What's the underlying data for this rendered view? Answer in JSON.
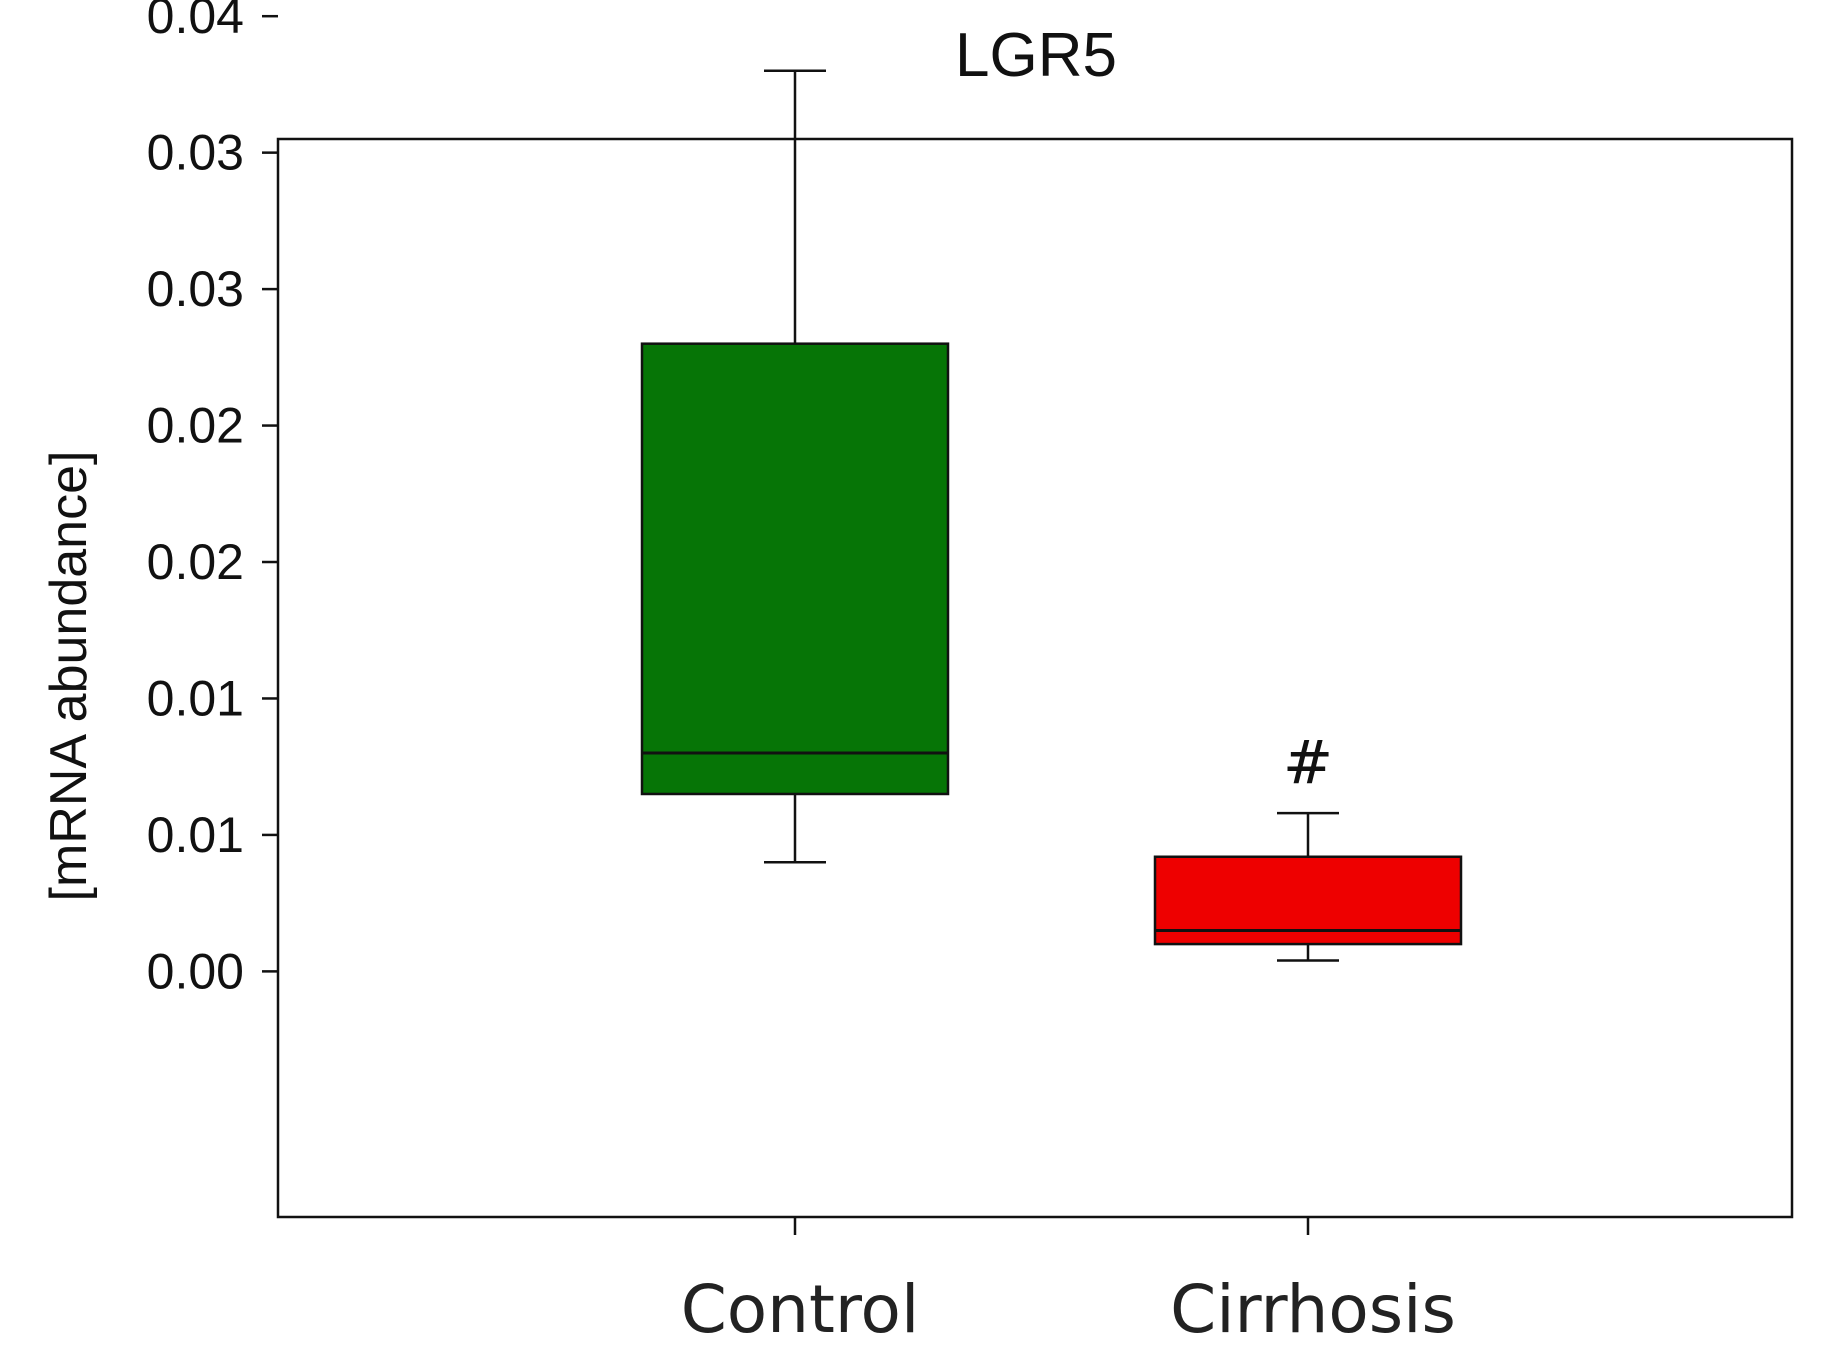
{
  "chart_data": {
    "type": "box",
    "title": "LGR5",
    "xlabel": "",
    "ylabel": "[mRNA abundance]",
    "ylim": [
      -0.009,
      0.0305
    ],
    "yticks": [
      {
        "value": 0.0,
        "label": "0.00"
      },
      {
        "value": 0.005,
        "label": "0.01"
      },
      {
        "value": 0.01,
        "label": "0.01"
      },
      {
        "value": 0.015,
        "label": "0.02"
      },
      {
        "value": 0.02,
        "label": "0.02"
      },
      {
        "value": 0.025,
        "label": "0.03"
      },
      {
        "value": 0.03,
        "label": "0.03"
      },
      {
        "value": 0.035,
        "label": "0.04"
      }
    ],
    "categories": [
      "Control",
      "Cirrhosis"
    ],
    "boxes": [
      {
        "name": "Control",
        "whisker_low": 0.004,
        "q1": 0.0065,
        "median": 0.008,
        "q3": 0.023,
        "whisker_high": 0.033,
        "color": "#067506"
      },
      {
        "name": "Cirrhosis",
        "whisker_low": 0.0004,
        "q1": 0.001,
        "median": 0.0015,
        "q3": 0.0042,
        "whisker_high": 0.0058,
        "color": "#ee0000"
      }
    ],
    "annotations": [
      {
        "category": "Cirrhosis",
        "text": "#"
      }
    ],
    "grid": false,
    "legend": "none"
  }
}
